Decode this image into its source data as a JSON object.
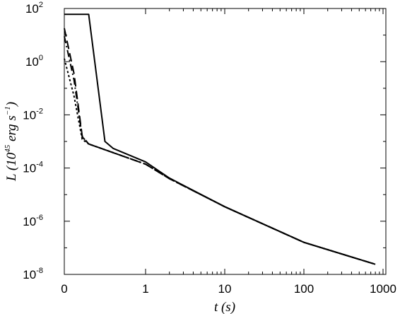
{
  "chart_data": {
    "type": "line",
    "xlabel": "t (s)",
    "ylabel": {
      "prefix": "L (10",
      "prefix_exp": "45",
      "unit": " erg s",
      "unit_exp": "−1",
      "suffix": ")"
    },
    "x_scale": "linear near 0, logarithmic from 1 to 1000",
    "y_scale": "log",
    "ylim": [
      1e-08,
      100
    ],
    "x_ticks": [
      "0",
      "1",
      "10",
      "100",
      "1000"
    ],
    "y_ticks": [
      {
        "base": "10",
        "exp": "2",
        "value": 100
      },
      {
        "base": "10",
        "exp": "0",
        "value": 1
      },
      {
        "base": "10",
        "exp": "-2",
        "value": 0.01
      },
      {
        "base": "10",
        "exp": "-4",
        "value": 0.0001
      },
      {
        "base": "10",
        "exp": "-6",
        "value": 1e-06
      },
      {
        "base": "10",
        "exp": "-8",
        "value": 1e-08
      }
    ],
    "grid": false,
    "legend": "none",
    "series": [
      {
        "style": "solid",
        "points": [
          [
            0,
            60
          ],
          [
            0.3,
            60
          ],
          [
            0.5,
            0.001
          ],
          [
            0.6,
            0.00055
          ],
          [
            1,
            0.00017
          ],
          [
            2,
            4.2e-05
          ],
          [
            10,
            3.5e-06
          ],
          [
            100,
            1.6e-07
          ],
          [
            800,
            2.4e-08
          ]
        ]
      },
      {
        "style": "dashed",
        "points": [
          [
            0,
            18
          ],
          [
            0.12,
            0.35
          ],
          [
            0.22,
            0.0016
          ],
          [
            0.3,
            0.0008
          ],
          [
            1,
            0.00014
          ],
          [
            2,
            4e-05
          ],
          [
            10,
            3.5e-06
          ],
          [
            100,
            1.6e-07
          ],
          [
            800,
            2.4e-08
          ]
        ]
      },
      {
        "style": "dash-dot",
        "points": [
          [
            0,
            9
          ],
          [
            0.12,
            0.2
          ],
          [
            0.22,
            0.0015
          ],
          [
            0.3,
            0.0008
          ],
          [
            1,
            0.00014
          ],
          [
            2,
            4e-05
          ],
          [
            10,
            3.5e-06
          ],
          [
            100,
            1.6e-07
          ],
          [
            800,
            2.4e-08
          ]
        ]
      },
      {
        "style": "dotted",
        "points": [
          [
            0,
            1.3
          ],
          [
            0.12,
            0.05
          ],
          [
            0.22,
            0.0012
          ],
          [
            0.3,
            0.0008
          ],
          [
            1,
            0.00014
          ],
          [
            2,
            4e-05
          ],
          [
            10,
            3.5e-06
          ],
          [
            100,
            1.6e-07
          ],
          [
            800,
            2.4e-08
          ]
        ]
      }
    ]
  }
}
